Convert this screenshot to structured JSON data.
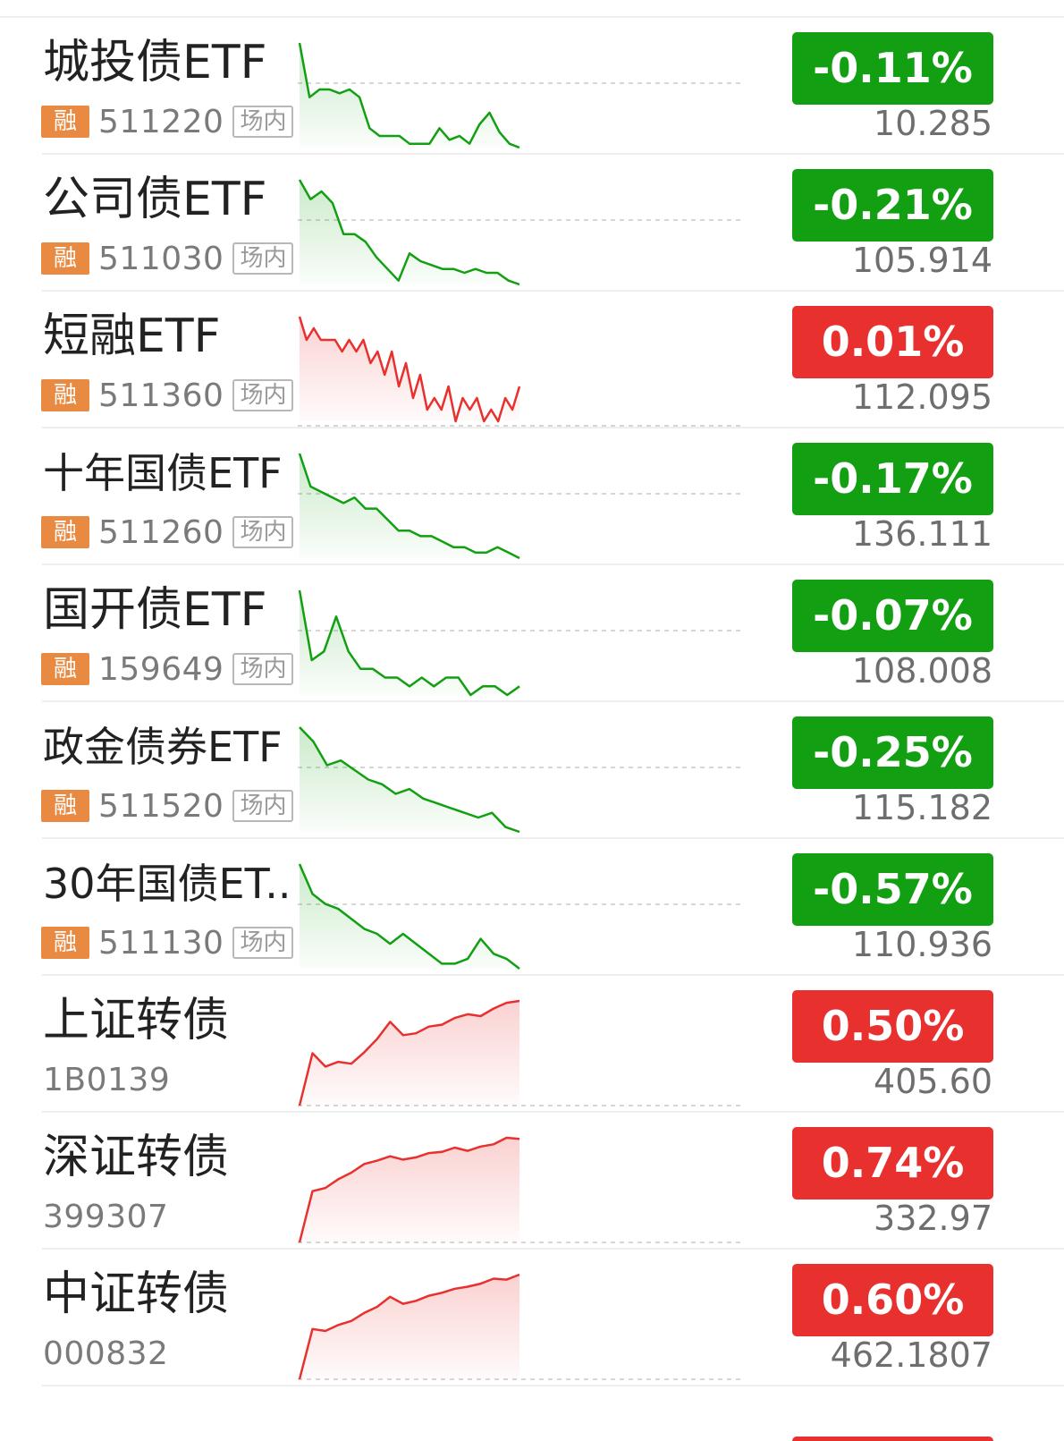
{
  "colors": {
    "down": "#12a012",
    "up": "#e8302e",
    "badge": "#e88a42"
  },
  "items": [
    {
      "name": "城投债ETF",
      "badge": "融",
      "code": "511220",
      "market": "场内",
      "change": "-0.11%",
      "price": "10.285",
      "trend": "down",
      "spark": [
        100,
        86,
        88,
        88,
        87,
        88,
        86,
        78,
        76,
        76,
        76,
        74,
        74,
        74,
        78,
        75,
        76,
        74,
        79,
        82,
        77,
        74,
        73
      ]
    },
    {
      "name": "公司债ETF",
      "badge": "融",
      "code": "511030",
      "market": "场内",
      "change": "-0.21%",
      "price": "105.914",
      "trend": "down",
      "spark": [
        100,
        95,
        97,
        94,
        86,
        86,
        84,
        80,
        77,
        74,
        81,
        79,
        78,
        77,
        77,
        76,
        77,
        76,
        76,
        74,
        73
      ]
    },
    {
      "name": "短融ETF",
      "badge": "融",
      "code": "511360",
      "market": "场内",
      "change": "0.01%",
      "price": "112.095",
      "trend": "up",
      "spark": [
        100,
        98,
        99,
        98,
        98,
        98,
        97,
        98,
        97,
        98,
        96,
        97,
        95,
        97,
        94,
        96,
        93,
        95,
        92,
        93,
        92,
        94,
        91,
        93,
        92,
        93,
        91,
        92,
        91,
        93,
        92,
        94
      ]
    },
    {
      "name": "十年国债ETF",
      "badge": "融",
      "code": "511260",
      "market": "场内",
      "change": "-0.17%",
      "price": "136.111",
      "trend": "down",
      "spark": [
        100,
        94,
        93,
        92,
        91,
        92,
        90,
        90,
        88,
        86,
        86,
        85,
        85,
        84,
        83,
        83,
        82,
        82,
        83,
        82,
        81
      ]
    },
    {
      "name": "国开债ETF",
      "badge": "融",
      "code": "159649",
      "market": "场内",
      "change": "-0.07%",
      "price": "108.008",
      "trend": "down",
      "spark": [
        100,
        92,
        93,
        97,
        93,
        91,
        91,
        90,
        90,
        89,
        90,
        89,
        90,
        90,
        88,
        89,
        89,
        88,
        89
      ]
    },
    {
      "name": "政金债券ETF",
      "badge": "融",
      "code": "511520",
      "market": "场内",
      "change": "-0.25%",
      "price": "115.182",
      "trend": "down",
      "spark": [
        100,
        97,
        92,
        93,
        91,
        89,
        88,
        86,
        87,
        85,
        84,
        83,
        82,
        81,
        82,
        79,
        78
      ]
    },
    {
      "name": "30年国债ET...",
      "badge": "融",
      "code": "511130",
      "market": "场内",
      "change": "-0.57%",
      "price": "110.936",
      "trend": "down",
      "spark": [
        100,
        94,
        92,
        91,
        89,
        87,
        86,
        84,
        86,
        84,
        82,
        80,
        80,
        81,
        85,
        82,
        81,
        79
      ]
    },
    {
      "name": "上证转债",
      "badge": "",
      "code": "1B0139",
      "market": "",
      "change": "0.50%",
      "price": "405.60",
      "trend": "up",
      "spark": [
        0,
        55,
        41,
        46,
        44,
        56,
        70,
        88,
        74,
        76,
        83,
        85,
        92,
        96,
        94,
        102,
        108,
        110
      ]
    },
    {
      "name": "深证转债",
      "badge": "",
      "code": "399307",
      "market": "",
      "change": "0.74%",
      "price": "332.97",
      "trend": "up",
      "spark": [
        0,
        47,
        50,
        58,
        64,
        72,
        75,
        79,
        76,
        78,
        82,
        83,
        87,
        84,
        88,
        90,
        96,
        95
      ]
    },
    {
      "name": "中证转债",
      "badge": "",
      "code": "000832",
      "market": "",
      "change": "0.60%",
      "price": "462.1807",
      "trend": "up",
      "spark": [
        0,
        50,
        48,
        54,
        58,
        66,
        72,
        82,
        75,
        78,
        83,
        86,
        90,
        92,
        95,
        100,
        99,
        104
      ]
    }
  ]
}
